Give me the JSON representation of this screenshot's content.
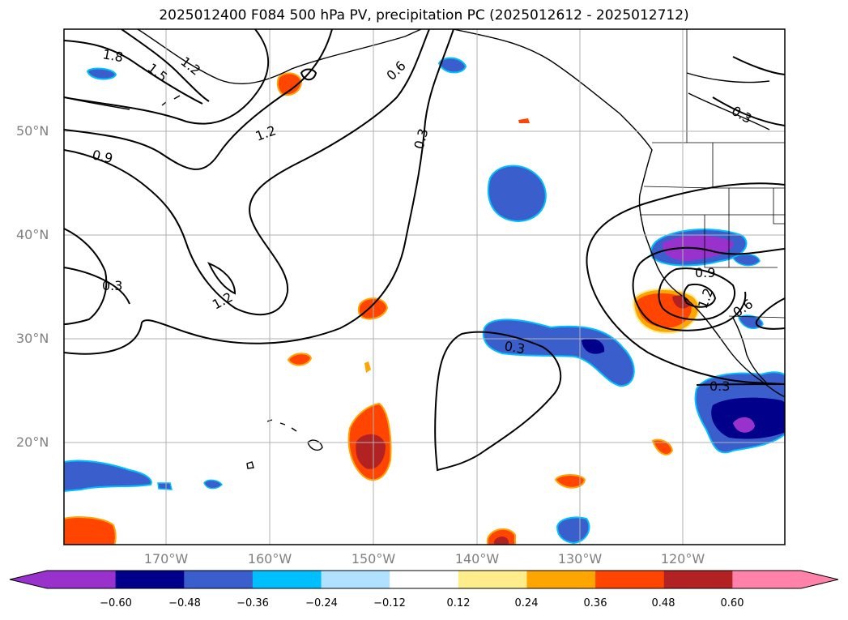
{
  "title": "2025012400 F084 500 hPa PV, precipitation PC (2025012612 - 2025012712)",
  "map": {
    "lat_labels": [
      "50°N",
      "40°N",
      "30°N",
      "20°N"
    ],
    "lon_labels": [
      "170°W",
      "160°W",
      "150°W",
      "140°W",
      "130°W",
      "120°W"
    ],
    "contour_labels": [
      "1.8",
      "1.5",
      "1.2",
      "1.2",
      "0.9",
      "0.3",
      "1.2",
      "0.6",
      "0.3",
      "0.3",
      "0.9",
      "1.2",
      "0.6",
      "0.3",
      "0.3"
    ]
  },
  "colorbar": {
    "ticks": [
      "−0.60",
      "−0.48",
      "−0.36",
      "−0.24",
      "−0.12",
      "0.12",
      "0.24",
      "0.36",
      "0.48",
      "0.60"
    ],
    "colors": [
      "#9932cc",
      "#00008b",
      "#3a5fcd",
      "#00bfff",
      "#b0e2ff",
      "#ffffff",
      "#ffec8b",
      "#ffa500",
      "#ff4500",
      "#b22222",
      "#ff82ab"
    ]
  }
}
